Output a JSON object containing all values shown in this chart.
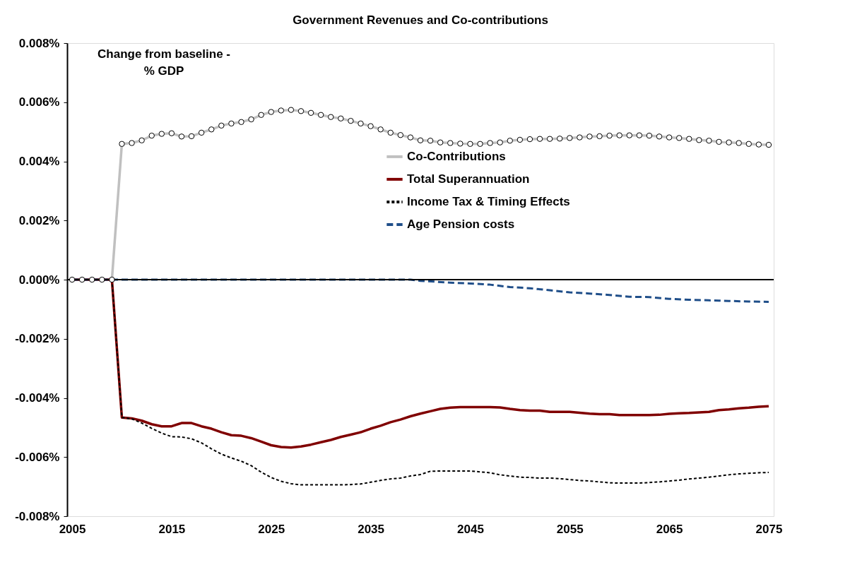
{
  "chart_data": {
    "type": "line",
    "title": "Government Revenues and Co-contributions",
    "annotations": [
      "Change from baseline - % GDP"
    ],
    "x": [
      2005,
      2006,
      2007,
      2008,
      2009,
      2010,
      2011,
      2012,
      2013,
      2014,
      2015,
      2016,
      2017,
      2018,
      2019,
      2020,
      2021,
      2022,
      2023,
      2024,
      2025,
      2026,
      2027,
      2028,
      2029,
      2030,
      2031,
      2032,
      2033,
      2034,
      2035,
      2036,
      2037,
      2038,
      2039,
      2040,
      2041,
      2042,
      2043,
      2044,
      2045,
      2046,
      2047,
      2048,
      2049,
      2050,
      2051,
      2052,
      2053,
      2054,
      2055,
      2056,
      2057,
      2058,
      2059,
      2060,
      2061,
      2062,
      2063,
      2064,
      2065,
      2066,
      2067,
      2068,
      2069,
      2070,
      2071,
      2072,
      2073,
      2074,
      2075
    ],
    "xlim": [
      2004.5,
      2075.5
    ],
    "xticks": [
      2005,
      2015,
      2025,
      2035,
      2045,
      2055,
      2065,
      2075
    ],
    "ylim": [
      -0.008,
      0.008
    ],
    "yticks": [
      {
        "value": -0.008,
        "label": "-0.008%"
      },
      {
        "value": -0.006,
        "label": "-0.006%"
      },
      {
        "value": -0.004,
        "label": "-0.004%"
      },
      {
        "value": -0.002,
        "label": "-0.002%"
      },
      {
        "value": 0,
        "label": "0.000%"
      },
      {
        "value": 0.002,
        "label": "0.002%"
      },
      {
        "value": 0.004,
        "label": "0.004%"
      },
      {
        "value": 0.006,
        "label": "0.006%"
      },
      {
        "value": 0.008,
        "label": "0.008%"
      }
    ],
    "grid": false,
    "legend": "top right",
    "ref_lines": [
      {
        "axis": "y",
        "value": 0,
        "color": "#000000"
      }
    ],
    "series": [
      {
        "name": "Co-Contributions",
        "color": "#c0c0c0",
        "marker": "circle",
        "line_style": "solid",
        "values": [
          0,
          0,
          0,
          0,
          0,
          0.00459,
          0.00462,
          0.00471,
          0.00487,
          0.00493,
          0.00495,
          0.00484,
          0.00485,
          0.00497,
          0.00508,
          0.00521,
          0.00528,
          0.00533,
          0.00542,
          0.00557,
          0.00567,
          0.00572,
          0.00574,
          0.0057,
          0.00564,
          0.00557,
          0.0055,
          0.00545,
          0.00537,
          0.00528,
          0.00519,
          0.00508,
          0.00497,
          0.00489,
          0.00481,
          0.00471,
          0.0047,
          0.00464,
          0.00462,
          0.0046,
          0.00459,
          0.00459,
          0.00462,
          0.00464,
          0.0047,
          0.00473,
          0.00475,
          0.00476,
          0.00476,
          0.00477,
          0.00479,
          0.00481,
          0.00484,
          0.00485,
          0.00487,
          0.00488,
          0.00488,
          0.00488,
          0.00487,
          0.00484,
          0.00481,
          0.00479,
          0.00476,
          0.00472,
          0.0047,
          0.00466,
          0.00464,
          0.00462,
          0.00459,
          0.00457,
          0.00456
        ]
      },
      {
        "name": "Total Superannuation",
        "color": "#800000",
        "marker": "none",
        "line_style": "solid",
        "values": [
          0,
          0,
          0,
          0,
          0,
          -0.00466,
          -0.00469,
          -0.00477,
          -0.00489,
          -0.00496,
          -0.00496,
          -0.00485,
          -0.00485,
          -0.00496,
          -0.00504,
          -0.00516,
          -0.00526,
          -0.00528,
          -0.00536,
          -0.00548,
          -0.0056,
          -0.00566,
          -0.00568,
          -0.00564,
          -0.00558,
          -0.0055,
          -0.00542,
          -0.00532,
          -0.00524,
          -0.00516,
          -0.00504,
          -0.00494,
          -0.00482,
          -0.00473,
          -0.00462,
          -0.00453,
          -0.00445,
          -0.00437,
          -0.00433,
          -0.00431,
          -0.00431,
          -0.00431,
          -0.00431,
          -0.00432,
          -0.00437,
          -0.00441,
          -0.00443,
          -0.00443,
          -0.00447,
          -0.00447,
          -0.00447,
          -0.0045,
          -0.00453,
          -0.00455,
          -0.00455,
          -0.00458,
          -0.00458,
          -0.00458,
          -0.00458,
          -0.00457,
          -0.00454,
          -0.00452,
          -0.00451,
          -0.00449,
          -0.00447,
          -0.00441,
          -0.00439,
          -0.00435,
          -0.00433,
          -0.0043,
          -0.00428
        ]
      },
      {
        "name": "Income Tax & Timing Effects",
        "color": "#000000",
        "marker": "none",
        "line_style": "dotted",
        "values": [
          0,
          0,
          0,
          0,
          0,
          -0.00466,
          -0.00471,
          -0.00485,
          -0.00503,
          -0.00519,
          -0.00531,
          -0.00532,
          -0.00538,
          -0.00552,
          -0.00572,
          -0.0059,
          -0.00603,
          -0.00614,
          -0.00629,
          -0.00651,
          -0.00669,
          -0.00682,
          -0.0069,
          -0.00694,
          -0.00694,
          -0.00694,
          -0.00694,
          -0.00694,
          -0.00693,
          -0.00691,
          -0.00685,
          -0.00679,
          -0.00674,
          -0.00671,
          -0.00664,
          -0.00659,
          -0.00648,
          -0.00647,
          -0.00647,
          -0.00647,
          -0.00647,
          -0.0065,
          -0.00653,
          -0.0066,
          -0.00664,
          -0.00668,
          -0.00669,
          -0.00671,
          -0.00671,
          -0.00673,
          -0.00676,
          -0.00679,
          -0.00681,
          -0.00684,
          -0.00687,
          -0.00688,
          -0.00688,
          -0.00688,
          -0.00686,
          -0.00684,
          -0.00681,
          -0.00678,
          -0.00674,
          -0.00671,
          -0.00668,
          -0.00664,
          -0.0066,
          -0.00657,
          -0.00655,
          -0.00653,
          -0.00652
        ]
      },
      {
        "name": "Age Pension costs",
        "color": "#1f4e89",
        "marker": "none",
        "line_style": "dashed",
        "x": [
          2005,
          2010,
          2015,
          2021,
          2033,
          2038,
          2039,
          2040,
          2043,
          2045,
          2047,
          2049,
          2051,
          2053,
          2055,
          2057,
          2059,
          2061,
          2063,
          2065,
          2067,
          2069,
          2071,
          2073,
          2075
        ],
        "values": [
          0,
          0,
          0,
          0,
          0,
          0,
          0,
          -4e-05,
          -0.0001,
          -0.00013,
          -0.00017,
          -0.00025,
          -0.00029,
          -0.00036,
          -0.00043,
          -0.00047,
          -0.00052,
          -0.00058,
          -0.00059,
          -0.00065,
          -0.00068,
          -0.0007,
          -0.00072,
          -0.00074,
          -0.00075
        ]
      }
    ]
  }
}
